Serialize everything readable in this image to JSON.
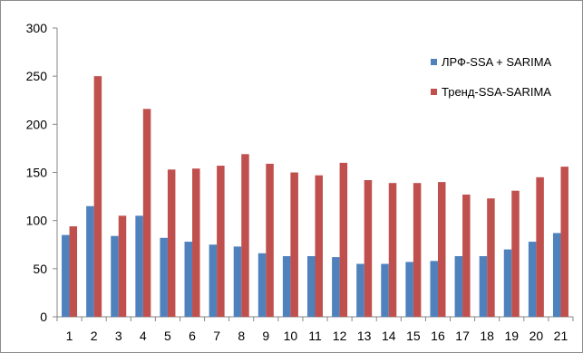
{
  "chart_data": {
    "type": "bar",
    "categories": [
      "1",
      "2",
      "3",
      "4",
      "5",
      "6",
      "7",
      "8",
      "9",
      "10",
      "11",
      "12",
      "13",
      "14",
      "15",
      "16",
      "17",
      "18",
      "19",
      "20",
      "21"
    ],
    "series": [
      {
        "name": "ЛРФ-SSA + SARIMA",
        "color": "#4f81bd",
        "values": [
          85,
          115,
          84,
          105,
          82,
          78,
          75,
          73,
          66,
          63,
          63,
          62,
          55,
          55,
          57,
          58,
          63,
          63,
          70,
          78,
          87
        ]
      },
      {
        "name": "Тренд-SSA-SARIMA",
        "color": "#c0504d",
        "values": [
          94,
          250,
          105,
          216,
          153,
          154,
          157,
          169,
          159,
          150,
          147,
          160,
          142,
          139,
          139,
          140,
          127,
          123,
          131,
          145,
          156
        ]
      }
    ],
    "yticks": [
      "0",
      "50",
      "100",
      "150",
      "200",
      "250",
      "300"
    ],
    "ylim": [
      0,
      300
    ],
    "grid": false,
    "legend": "right",
    "title": "",
    "xlabel": "",
    "ylabel": ""
  }
}
